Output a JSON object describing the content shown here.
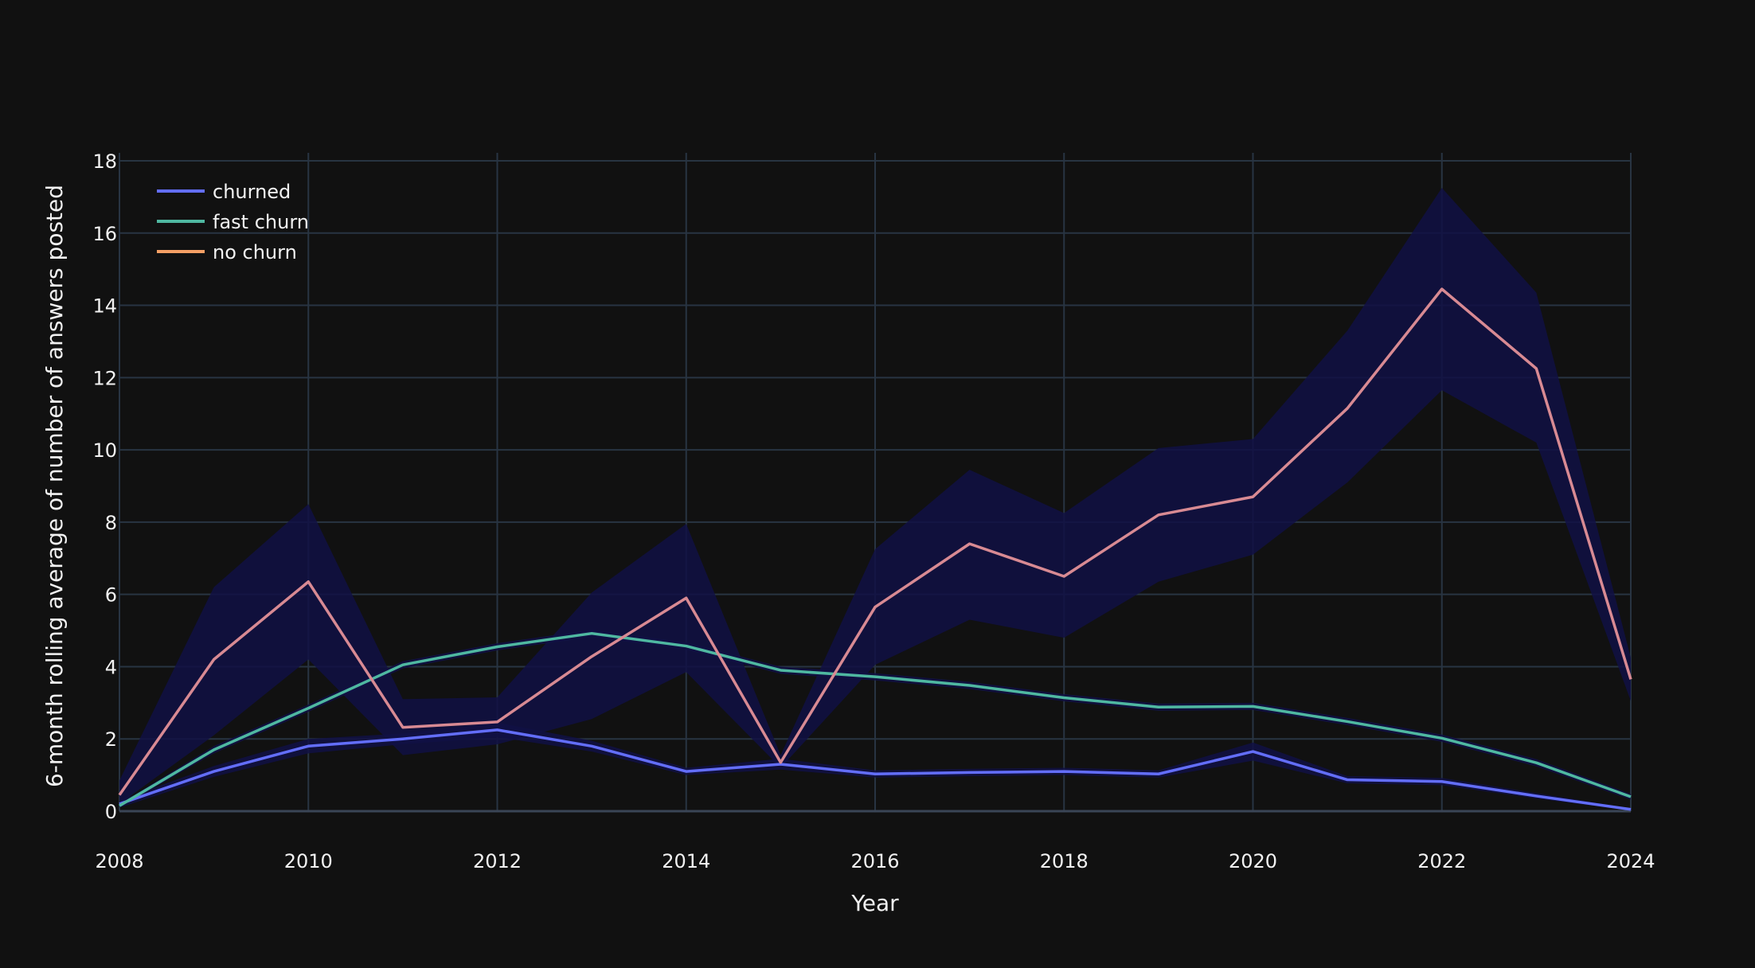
{
  "chart_data": {
    "type": "line",
    "title": "",
    "xlabel": "Year",
    "ylabel": "6-month rolling average of number of answers posted",
    "xlim": [
      2008,
      2024
    ],
    "ylim": [
      0,
      18
    ],
    "x_ticks": [
      2008,
      2010,
      2012,
      2014,
      2016,
      2018,
      2020,
      2022,
      2024
    ],
    "y_ticks": [
      0,
      2,
      4,
      6,
      8,
      10,
      12,
      14,
      16,
      18
    ],
    "grid": true,
    "legend_position": "top-left",
    "x": [
      2008,
      2009,
      2010,
      2011,
      2012,
      2013,
      2014,
      2015,
      2016,
      2017,
      2018,
      2019,
      2020,
      2021,
      2022,
      2023,
      2024
    ],
    "series": [
      {
        "name": "churned",
        "color": "#636efa",
        "values": [
          0.2,
          1.1,
          1.8,
          2.0,
          2.25,
          1.8,
          1.1,
          1.3,
          1.03,
          1.07,
          1.1,
          1.03,
          1.65,
          0.87,
          0.82,
          0.42,
          0.05
        ],
        "lower": [
          0.1,
          0.95,
          1.6,
          1.85,
          2.05,
          1.65,
          1.0,
          1.15,
          0.93,
          0.97,
          1.0,
          0.93,
          1.4,
          0.77,
          0.72,
          0.35,
          0.02
        ],
        "upper": [
          0.3,
          1.25,
          2.0,
          2.15,
          2.45,
          1.95,
          1.2,
          1.45,
          1.13,
          1.17,
          1.2,
          1.13,
          1.9,
          0.97,
          0.92,
          0.5,
          0.08
        ]
      },
      {
        "name": "fast churn",
        "color": "#4fb8a1",
        "values": [
          0.15,
          1.7,
          2.85,
          4.05,
          4.55,
          4.92,
          4.57,
          3.9,
          3.72,
          3.48,
          3.14,
          2.88,
          2.9,
          2.48,
          2.02,
          1.34,
          0.4
        ],
        "lower": [
          0.1,
          1.6,
          2.75,
          3.95,
          4.45,
          4.82,
          4.47,
          3.8,
          3.62,
          3.38,
          3.04,
          2.78,
          2.8,
          2.38,
          1.92,
          1.24,
          0.32
        ],
        "upper": [
          0.2,
          1.8,
          2.95,
          4.15,
          4.65,
          5.02,
          4.67,
          4.0,
          3.82,
          3.58,
          3.24,
          2.98,
          3.0,
          2.58,
          2.12,
          1.44,
          0.48
        ]
      },
      {
        "name": "no churn",
        "color": "#d88a93",
        "legend_color": "#f5a065",
        "values": [
          0.45,
          4.2,
          6.35,
          2.32,
          2.47,
          4.28,
          5.9,
          1.35,
          5.65,
          7.4,
          6.5,
          8.2,
          8.7,
          11.15,
          14.45,
          12.25,
          3.65
        ],
        "lower": [
          0.2,
          2.1,
          4.2,
          1.55,
          1.85,
          2.55,
          3.85,
          1.2,
          4.05,
          5.3,
          4.8,
          6.35,
          7.1,
          9.1,
          11.65,
          10.2,
          3.05
        ],
        "upper": [
          0.85,
          6.2,
          8.5,
          3.1,
          3.15,
          6.05,
          7.95,
          1.55,
          7.25,
          9.45,
          8.25,
          10.05,
          10.3,
          13.3,
          17.25,
          14.35,
          4.25
        ]
      }
    ],
    "band_color": "#111144"
  }
}
